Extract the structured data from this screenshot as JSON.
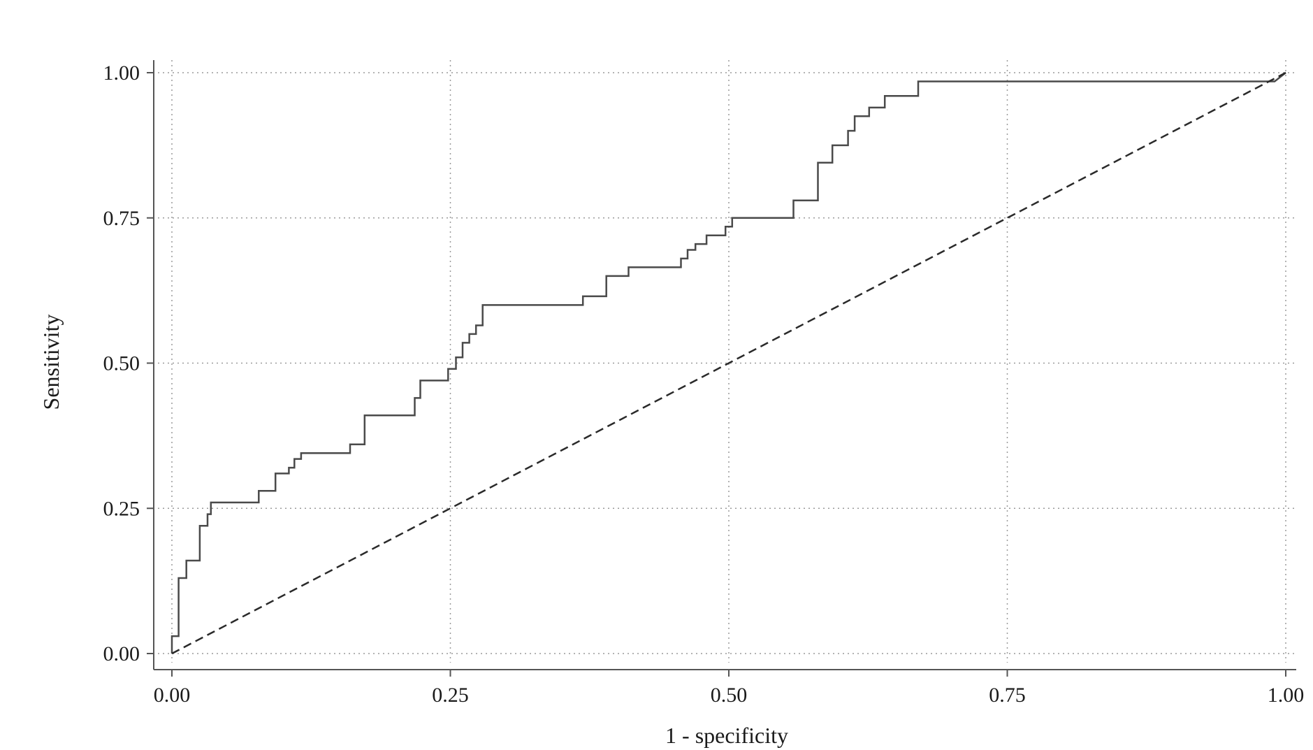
{
  "chart_data": {
    "type": "line",
    "title": "",
    "xlabel": "1 - specificity",
    "ylabel": "Sensitivity",
    "xlim": [
      0,
      1
    ],
    "ylim": [
      0,
      1
    ],
    "x_ticks": [
      "0.00",
      "0.25",
      "0.50",
      "0.75",
      "1.00"
    ],
    "y_ticks": [
      "0.00",
      "0.25",
      "0.50",
      "0.75",
      "1.00"
    ],
    "x_tick_values": [
      0,
      0.25,
      0.5,
      0.75,
      1
    ],
    "y_tick_values": [
      0,
      0.25,
      0.5,
      0.75,
      1
    ],
    "grid": true,
    "grid_style": "dotted",
    "legend": "none",
    "series": [
      {
        "style": "stepped-solid",
        "color": "#4a4a4a",
        "points": [
          [
            0.0,
            0.0
          ],
          [
            0.0,
            0.03
          ],
          [
            0.006,
            0.03
          ],
          [
            0.006,
            0.13
          ],
          [
            0.013,
            0.13
          ],
          [
            0.013,
            0.16
          ],
          [
            0.025,
            0.16
          ],
          [
            0.025,
            0.22
          ],
          [
            0.032,
            0.22
          ],
          [
            0.032,
            0.24
          ],
          [
            0.035,
            0.24
          ],
          [
            0.035,
            0.26
          ],
          [
            0.078,
            0.26
          ],
          [
            0.078,
            0.28
          ],
          [
            0.093,
            0.28
          ],
          [
            0.093,
            0.31
          ],
          [
            0.105,
            0.31
          ],
          [
            0.105,
            0.32
          ],
          [
            0.11,
            0.32
          ],
          [
            0.11,
            0.335
          ],
          [
            0.116,
            0.335
          ],
          [
            0.116,
            0.345
          ],
          [
            0.16,
            0.345
          ],
          [
            0.16,
            0.36
          ],
          [
            0.173,
            0.36
          ],
          [
            0.173,
            0.41
          ],
          [
            0.218,
            0.41
          ],
          [
            0.218,
            0.44
          ],
          [
            0.223,
            0.44
          ],
          [
            0.223,
            0.47
          ],
          [
            0.248,
            0.47
          ],
          [
            0.248,
            0.49
          ],
          [
            0.255,
            0.49
          ],
          [
            0.255,
            0.51
          ],
          [
            0.261,
            0.51
          ],
          [
            0.261,
            0.535
          ],
          [
            0.267,
            0.535
          ],
          [
            0.267,
            0.55
          ],
          [
            0.273,
            0.55
          ],
          [
            0.273,
            0.565
          ],
          [
            0.279,
            0.565
          ],
          [
            0.279,
            0.6
          ],
          [
            0.369,
            0.6
          ],
          [
            0.369,
            0.615
          ],
          [
            0.39,
            0.615
          ],
          [
            0.39,
            0.65
          ],
          [
            0.41,
            0.65
          ],
          [
            0.41,
            0.665
          ],
          [
            0.457,
            0.665
          ],
          [
            0.457,
            0.68
          ],
          [
            0.463,
            0.68
          ],
          [
            0.463,
            0.695
          ],
          [
            0.47,
            0.695
          ],
          [
            0.47,
            0.705
          ],
          [
            0.48,
            0.705
          ],
          [
            0.48,
            0.72
          ],
          [
            0.497,
            0.72
          ],
          [
            0.497,
            0.735
          ],
          [
            0.503,
            0.735
          ],
          [
            0.503,
            0.75
          ],
          [
            0.558,
            0.75
          ],
          [
            0.558,
            0.78
          ],
          [
            0.58,
            0.78
          ],
          [
            0.58,
            0.845
          ],
          [
            0.593,
            0.845
          ],
          [
            0.593,
            0.875
          ],
          [
            0.607,
            0.875
          ],
          [
            0.607,
            0.9
          ],
          [
            0.613,
            0.9
          ],
          [
            0.613,
            0.925
          ],
          [
            0.626,
            0.925
          ],
          [
            0.626,
            0.94
          ],
          [
            0.64,
            0.94
          ],
          [
            0.64,
            0.96
          ],
          [
            0.67,
            0.96
          ],
          [
            0.67,
            0.985
          ],
          [
            0.99,
            0.985
          ],
          [
            1.0,
            1.0
          ]
        ]
      },
      {
        "style": "dashed",
        "color": "#2a2a2a",
        "points": [
          [
            0,
            0
          ],
          [
            1,
            1
          ]
        ]
      }
    ]
  }
}
